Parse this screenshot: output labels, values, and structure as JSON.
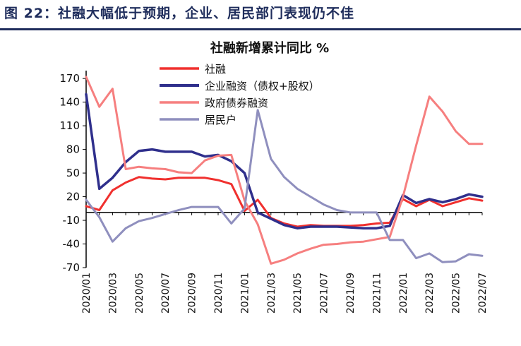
{
  "figure_title": "图 22：社融大幅低于预期，企业、居民部门表现仍不佳",
  "chart_data": {
    "type": "line",
    "title": "社融新增累计同比 %",
    "xlabel": "",
    "ylabel": "",
    "ylim": [
      -70,
      180
    ],
    "yticks": [
      170,
      140,
      110,
      80,
      50,
      20,
      -10,
      -40,
      -70
    ],
    "x": [
      "2020/01",
      "2020/02",
      "2020/03",
      "2020/04",
      "2020/05",
      "2020/06",
      "2020/07",
      "2020/08",
      "2020/09",
      "2020/10",
      "2020/11",
      "2020/12",
      "2021/01",
      "2021/02",
      "2021/03",
      "2021/04",
      "2021/05",
      "2021/06",
      "2021/07",
      "2021/08",
      "2021/09",
      "2021/10",
      "2021/11",
      "2021/12",
      "2022/01",
      "2022/02",
      "2022/03",
      "2022/04",
      "2022/05",
      "2022/06",
      "2022/07"
    ],
    "xtick_labels": [
      "2020/01",
      "2020/03",
      "2020/05",
      "2020/07",
      "2020/09",
      "2020/11",
      "2021/01",
      "2021/03",
      "2021/05",
      "2021/07",
      "2021/09",
      "2021/11",
      "2022/01",
      "2022/03",
      "2022/05",
      "2022/07"
    ],
    "grid": false,
    "legend_position": "top-center",
    "series": [
      {
        "name": "社融",
        "color": "#f0302e",
        "width": 3,
        "values": [
          8,
          3,
          28,
          38,
          45,
          43,
          42,
          44,
          44,
          44,
          41,
          36,
          2,
          16,
          -7,
          -14,
          -18,
          -16,
          -17,
          -17,
          -17,
          -16,
          -14,
          -13,
          17,
          8,
          16,
          8,
          13,
          18,
          15
        ]
      },
      {
        "name": "企业融资（债权+股权）",
        "color": "#2f2f8c",
        "width": 3.5,
        "values": [
          150,
          30,
          44,
          64,
          78,
          80,
          77,
          77,
          77,
          71,
          73,
          65,
          50,
          0,
          -8,
          -16,
          -20,
          -18,
          -18,
          -18,
          -19,
          -20,
          -20,
          -17,
          22,
          12,
          17,
          13,
          17,
          23,
          20
        ]
      },
      {
        "name": "政府债券融资",
        "color": "#f67f7f",
        "width": 3,
        "values": [
          172,
          134,
          157,
          55,
          58,
          56,
          55,
          51,
          50,
          66,
          72,
          73,
          15,
          -15,
          -65,
          -60,
          -52,
          -46,
          -41,
          -40,
          -38,
          -37,
          -34,
          -31,
          20,
          85,
          147,
          128,
          103,
          87,
          87
        ]
      },
      {
        "name": "居民户",
        "color": "#8f8fbe",
        "width": 3,
        "values": [
          16,
          -6,
          -37,
          -20,
          -11,
          -7,
          -2,
          3,
          7,
          7,
          7,
          -14,
          5,
          130,
          68,
          45,
          30,
          20,
          10,
          3,
          0,
          0,
          0,
          -35,
          -35,
          -58,
          -52,
          -63,
          -62,
          -53,
          -55
        ]
      }
    ]
  }
}
